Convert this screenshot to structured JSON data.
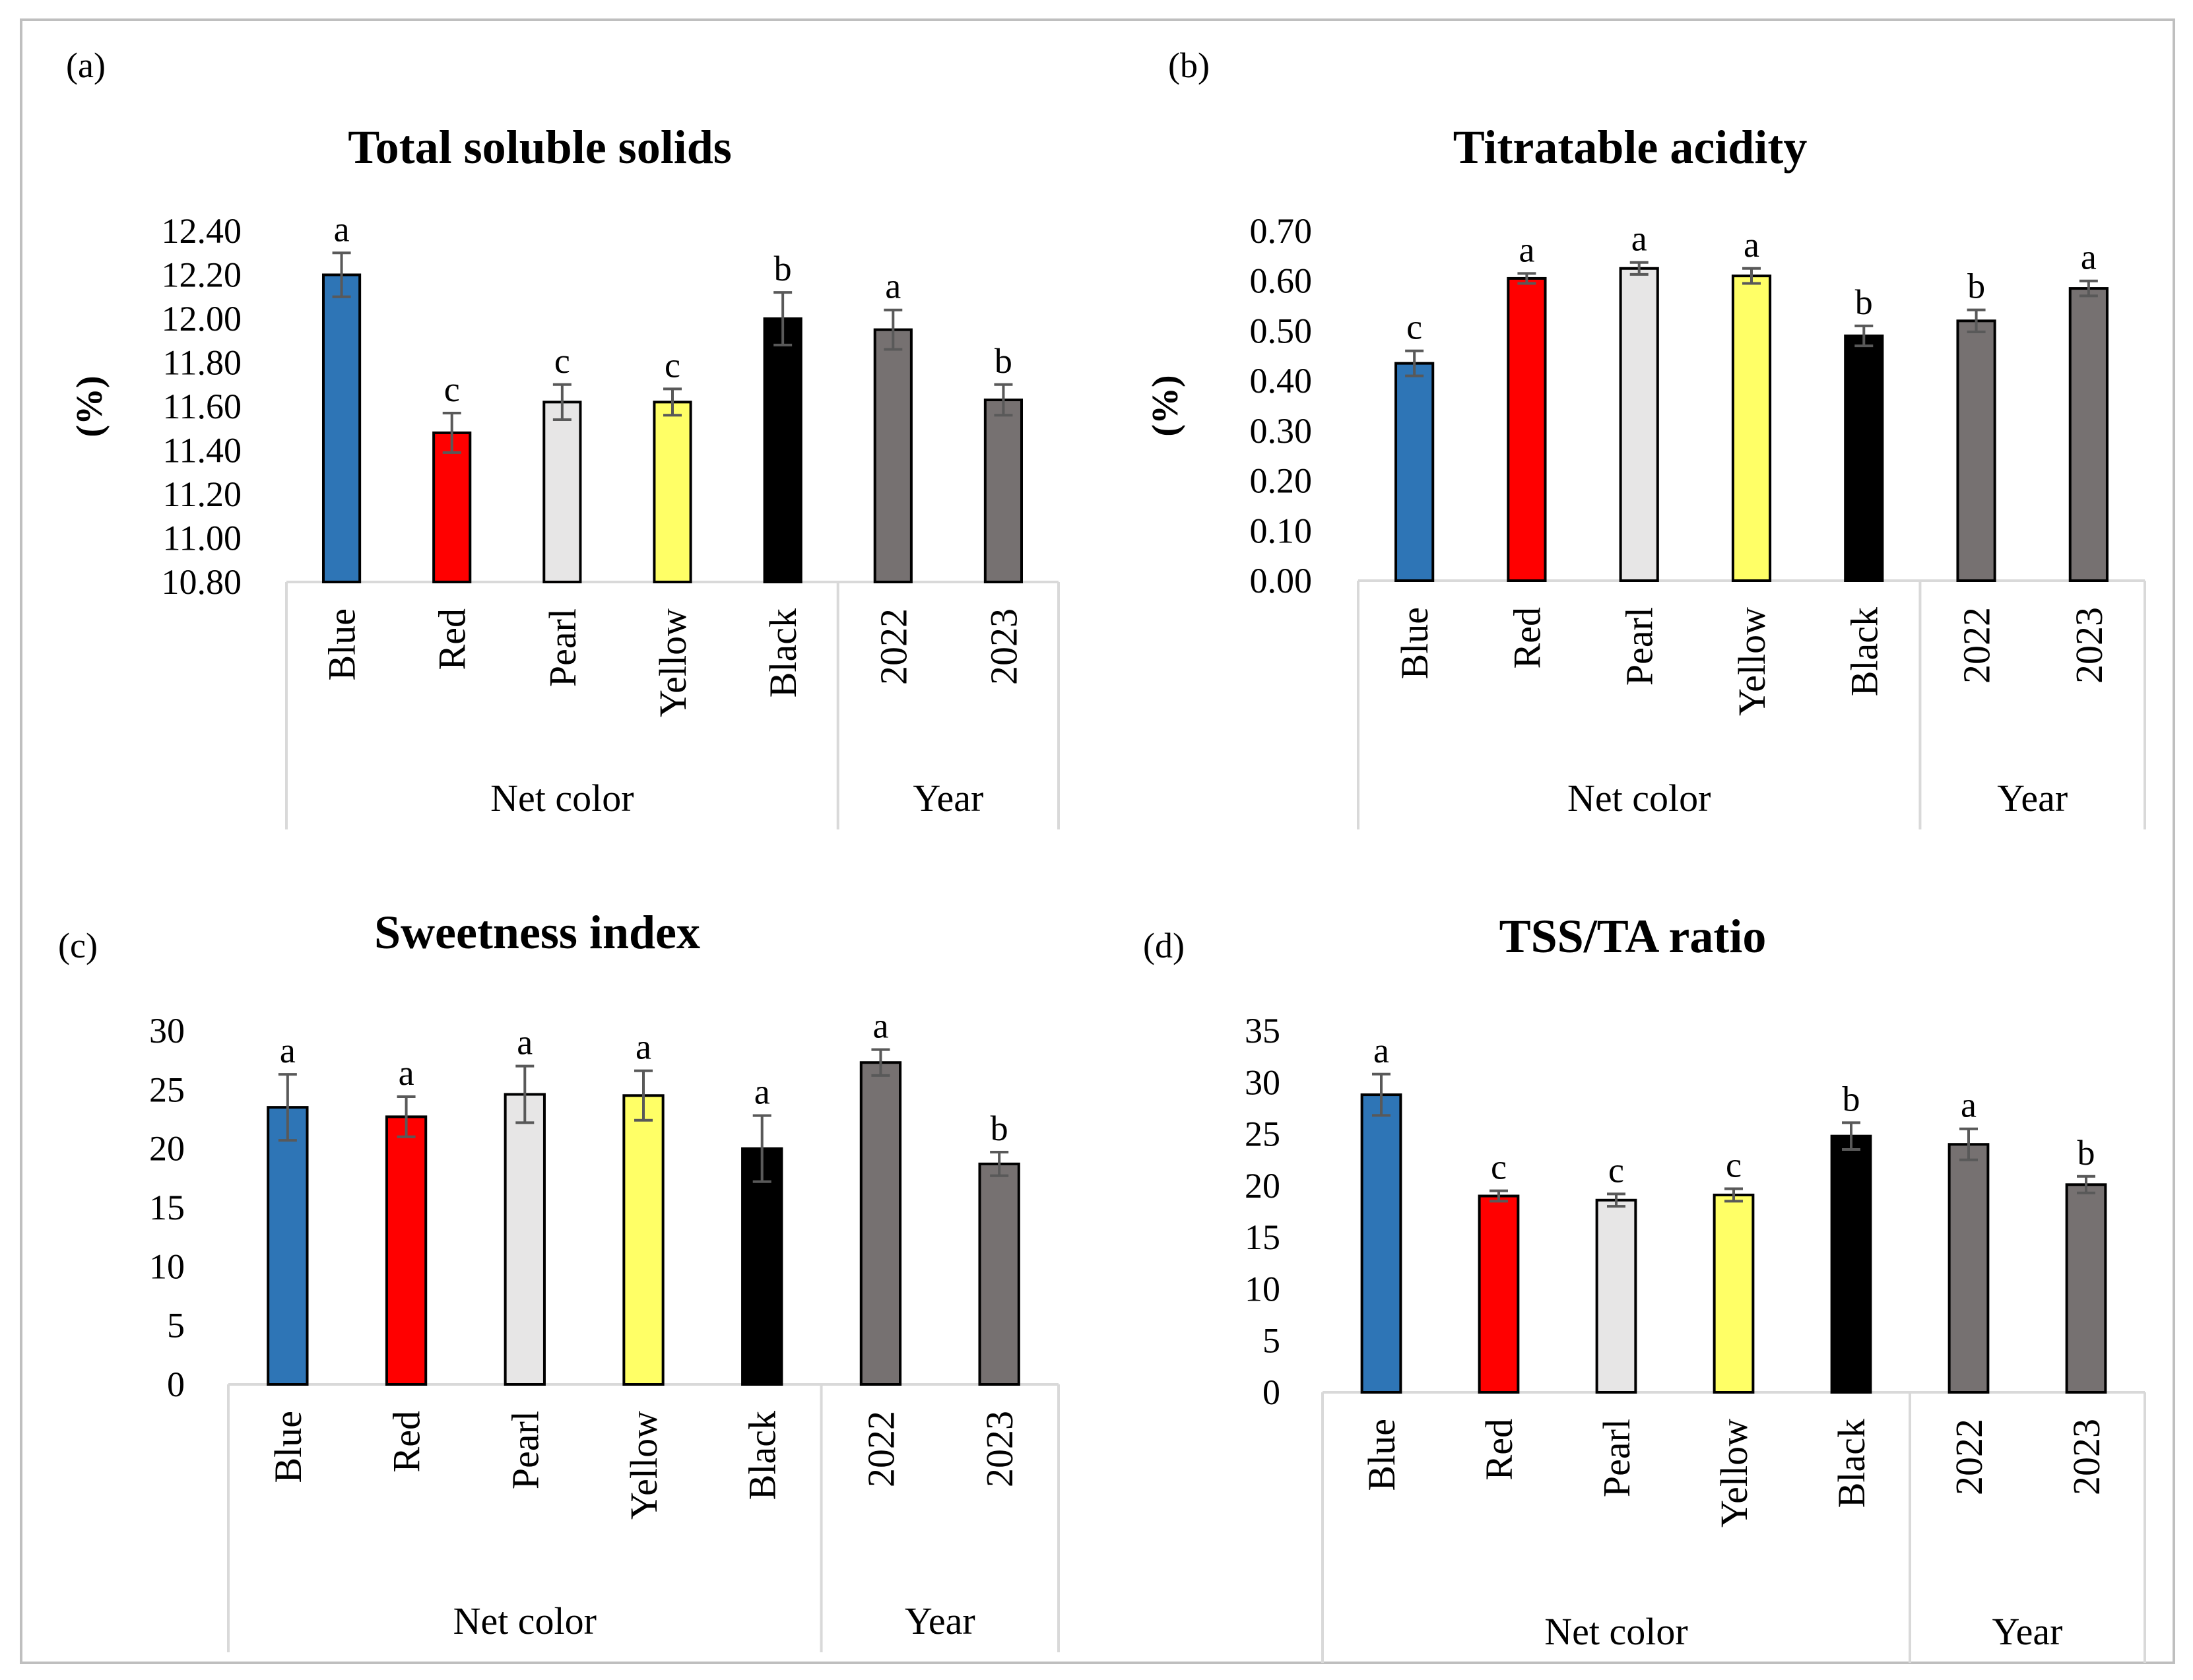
{
  "chart_data": [
    {
      "panel": "(a)",
      "type": "bar",
      "title": "Total soluble solids",
      "ylabel": "(%)",
      "ylim": [
        10.8,
        12.4
      ],
      "yticks": [
        "12.40",
        "12.20",
        "12.00",
        "11.80",
        "11.60",
        "11.40",
        "11.20",
        "11.00",
        "10.80"
      ],
      "yticks_values": [
        12.4,
        12.2,
        12.0,
        11.8,
        11.6,
        11.4,
        11.2,
        11.0,
        10.8
      ],
      "categories": [
        "Blue",
        "Red",
        "Pearl",
        "Yellow",
        "Black",
        "2022",
        "2023"
      ],
      "groups": [
        {
          "label": "Net color",
          "count": 5
        },
        {
          "label": "Year",
          "count": 2
        }
      ],
      "values": [
        12.2,
        11.48,
        11.62,
        11.62,
        12.0,
        11.95,
        11.63
      ],
      "errors": [
        0.1,
        0.09,
        0.08,
        0.06,
        0.12,
        0.09,
        0.07
      ],
      "letters": [
        "a",
        "c",
        "c",
        "c",
        "b",
        "a",
        "b"
      ],
      "colors": [
        "#2e75b6",
        "#ff0000",
        "#e7e6e6",
        "#ffff66",
        "#000000",
        "#767171",
        "#767171"
      ]
    },
    {
      "panel": "(b)",
      "type": "bar",
      "title": "Titratable acidity",
      "ylabel": "(%)",
      "ylim": [
        0.0,
        0.7
      ],
      "yticks": [
        "0.70",
        "0.60",
        "0.50",
        "0.40",
        "0.30",
        "0.20",
        "0.10",
        "0.00"
      ],
      "yticks_values": [
        0.7,
        0.6,
        0.5,
        0.4,
        0.3,
        0.2,
        0.1,
        0.0
      ],
      "categories": [
        "Blue",
        "Red",
        "Pearl",
        "Yellow",
        "Black",
        "2022",
        "2023"
      ],
      "groups": [
        {
          "label": "Net color",
          "count": 5
        },
        {
          "label": "Year",
          "count": 2
        }
      ],
      "values": [
        0.435,
        0.605,
        0.625,
        0.61,
        0.49,
        0.52,
        0.585
      ],
      "errors": [
        0.025,
        0.01,
        0.012,
        0.015,
        0.02,
        0.022,
        0.015
      ],
      "letters": [
        "c",
        "a",
        "a",
        "a",
        "b",
        "b",
        "a"
      ],
      "colors": [
        "#2e75b6",
        "#ff0000",
        "#e7e6e6",
        "#ffff66",
        "#000000",
        "#767171",
        "#767171"
      ]
    },
    {
      "panel": "(c)",
      "type": "bar",
      "title": "Sweetness index",
      "ylabel": "",
      "ylim": [
        0,
        30
      ],
      "yticks": [
        "30",
        "25",
        "20",
        "15",
        "10",
        "5",
        "0"
      ],
      "yticks_values": [
        30,
        25,
        20,
        15,
        10,
        5,
        0
      ],
      "categories": [
        "Blue",
        "Red",
        "Pearl",
        "Yellow",
        "Black",
        "2022",
        "2023"
      ],
      "groups": [
        {
          "label": "Net color",
          "count": 5
        },
        {
          "label": "Year",
          "count": 2
        }
      ],
      "values": [
        23.5,
        22.7,
        24.6,
        24.5,
        20.0,
        27.3,
        18.7
      ],
      "errors": [
        2.8,
        1.7,
        2.4,
        2.1,
        2.8,
        1.1,
        1.0
      ],
      "letters": [
        "a",
        "a",
        "a",
        "a",
        "a",
        "a",
        "b"
      ],
      "colors": [
        "#2e75b6",
        "#ff0000",
        "#e7e6e6",
        "#ffff66",
        "#000000",
        "#767171",
        "#767171"
      ]
    },
    {
      "panel": "(d)",
      "type": "bar",
      "title": "TSS/TA ratio",
      "ylabel": "",
      "ylim": [
        0,
        35
      ],
      "yticks": [
        "35",
        "30",
        "25",
        "20",
        "15",
        "10",
        "5",
        "0"
      ],
      "yticks_values": [
        35,
        30,
        25,
        20,
        15,
        10,
        5,
        0
      ],
      "categories": [
        "Blue",
        "Red",
        "Pearl",
        "Yellow",
        "Black",
        "2022",
        "2023"
      ],
      "groups": [
        {
          "label": "Net color",
          "count": 5
        },
        {
          "label": "Year",
          "count": 2
        }
      ],
      "values": [
        28.8,
        19.0,
        18.6,
        19.1,
        24.8,
        24.0,
        20.1
      ],
      "errors": [
        2.0,
        0.5,
        0.6,
        0.6,
        1.3,
        1.5,
        0.8
      ],
      "letters": [
        "a",
        "c",
        "c",
        "c",
        "b",
        "a",
        "b"
      ],
      "colors": [
        "#2e75b6",
        "#ff0000",
        "#e7e6e6",
        "#ffff66",
        "#000000",
        "#767171",
        "#767171"
      ]
    }
  ]
}
